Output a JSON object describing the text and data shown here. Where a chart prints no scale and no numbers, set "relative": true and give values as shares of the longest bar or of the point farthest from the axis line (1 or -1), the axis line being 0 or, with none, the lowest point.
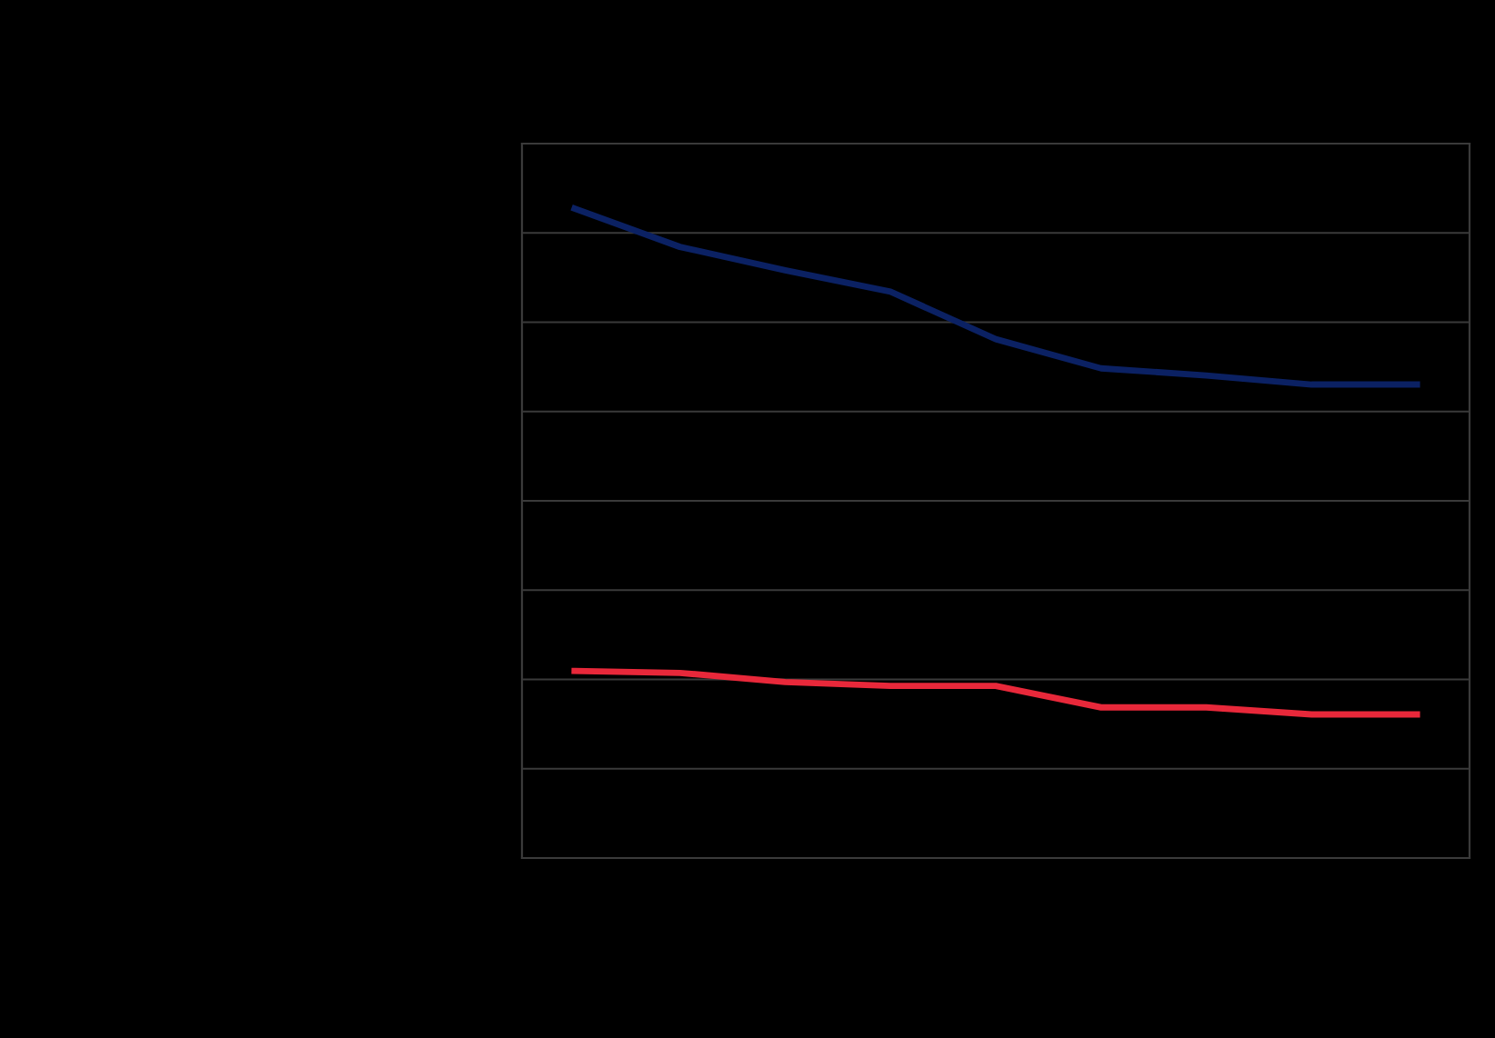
{
  "chart_data": {
    "type": "line",
    "relative": true,
    "categories": [
      null,
      null,
      null,
      null,
      null,
      null,
      null,
      null,
      null
    ],
    "series": [
      {
        "color": "#0b2163",
        "values": [
          1,
          0.941,
          0.905,
          0.872,
          0.799,
          0.754,
          0.743,
          0.729,
          0.729
        ]
      },
      {
        "color": "#e8283a",
        "values": [
          0.288,
          0.285,
          0.271,
          0.265,
          0.265,
          0.232,
          0.232,
          0.221,
          0.221
        ]
      }
    ],
    "grid": "y",
    "marker": "none",
    "line_style": "solid"
  }
}
